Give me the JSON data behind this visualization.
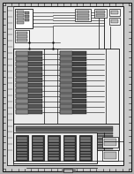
{
  "fig_width": 1.52,
  "fig_height": 1.97,
  "dpi": 100,
  "bg_outer": "#b0b0b0",
  "bg_inner": "#f0f0f0",
  "dark": "#111111",
  "white": "#ffffff",
  "gray_comp": "#666666",
  "light_comp": "#cccccc"
}
